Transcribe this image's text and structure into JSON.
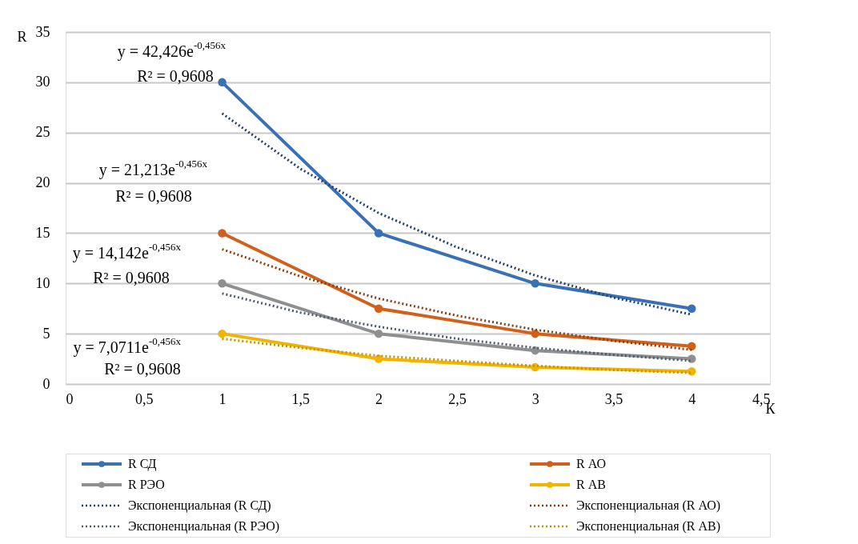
{
  "chart_data": {
    "type": "line",
    "xlabel": "К",
    "ylabel": "R",
    "x": [
      1,
      2,
      3,
      4
    ],
    "series": [
      {
        "name": "R СД",
        "color": "#3a70b5",
        "values": [
          30,
          15,
          10,
          7.5
        ],
        "marker": "circle",
        "line_style": "solid"
      },
      {
        "name": "R АО",
        "color": "#d0601a",
        "values": [
          15,
          7.5,
          5,
          3.75
        ],
        "marker": "circle",
        "line_style": "solid"
      },
      {
        "name": "R РЭО",
        "color": "#8f8f8f",
        "values": [
          10,
          5,
          3.33,
          2.5
        ],
        "marker": "circle",
        "line_style": "solid"
      },
      {
        "name": "R АВ",
        "color": "#f2b400",
        "values": [
          5,
          2.5,
          1.67,
          1.25
        ],
        "marker": "circle",
        "line_style": "solid"
      },
      {
        "name": "Экспоненциальная (R СД)",
        "color": "#26406e",
        "x": [
          1,
          1.5,
          2,
          2.5,
          3,
          3.5,
          4
        ],
        "values": [
          26.9,
          21.4,
          17.0,
          13.6,
          10.8,
          8.6,
          6.9
        ],
        "marker": "none",
        "line_style": "dotted"
      },
      {
        "name": "Экспоненциальная (R АО)",
        "color": "#8a3d10",
        "x": [
          1,
          1.5,
          2,
          2.5,
          3,
          3.5,
          4
        ],
        "values": [
          13.4,
          10.7,
          8.5,
          6.8,
          5.4,
          4.3,
          3.4
        ],
        "marker": "none",
        "line_style": "dotted"
      },
      {
        "name": "Экспоненциальная (R РЭО)",
        "color": "#4d5a70",
        "x": [
          1,
          1.5,
          2,
          2.5,
          3,
          3.5,
          4
        ],
        "values": [
          9.0,
          7.1,
          5.7,
          4.5,
          3.6,
          2.9,
          2.3
        ],
        "marker": "none",
        "line_style": "dotted"
      },
      {
        "name": "Экспоненциальная (R АВ)",
        "color": "#c49200",
        "x": [
          1,
          1.5,
          2,
          2.5,
          3,
          3.5,
          4
        ],
        "values": [
          4.5,
          3.6,
          2.8,
          2.3,
          1.8,
          1.4,
          1.1
        ],
        "marker": "none",
        "line_style": "dotted"
      }
    ],
    "xlim": [
      0,
      4.5
    ],
    "xticks": [
      0,
      {
        "value": 0.5,
        "label": "0,5"
      },
      1,
      {
        "value": 1.5,
        "label": "1,5"
      },
      2,
      {
        "value": 2.5,
        "label": "2,5"
      },
      3,
      {
        "value": 3.5,
        "label": "3,5"
      },
      4,
      {
        "value": 4.5,
        "label": "4,5"
      }
    ],
    "ylim": [
      0,
      35
    ],
    "yticks": [
      0,
      5,
      10,
      15,
      20,
      25,
      30,
      35
    ],
    "grid": "y",
    "legend": "bottom",
    "annotations": [
      "y = 42,426e$^{-0,456x}$",
      "R² = 0,9608",
      "y = 21,213e$^{-0,456x}$",
      "R² = 0,9608",
      "y = 14,142e$^{-0,456x}$",
      "R² = 0,9608",
      "y = 7,0711e$^{-0,456x}$",
      "R² = 0,9608"
    ]
  }
}
